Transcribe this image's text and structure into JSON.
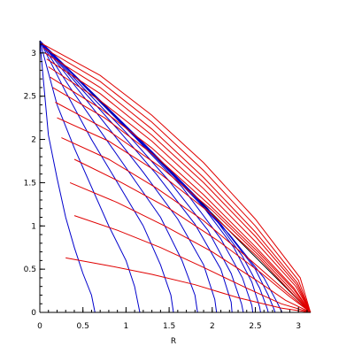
{
  "chart_data": {
    "type": "line",
    "title": "",
    "xlabel": "R",
    "ylabel": "",
    "xlim": [
      0,
      3.1416
    ],
    "ylim": [
      0,
      3.1416
    ],
    "grid": false,
    "legend": "none",
    "x_ticks": [
      {
        "value": 0,
        "label": "0"
      },
      {
        "value": 0.5,
        "label": "0.5"
      },
      {
        "value": 1,
        "label": "1"
      },
      {
        "value": 1.5,
        "label": "1.5"
      },
      {
        "value": 2,
        "label": "2"
      },
      {
        "value": 2.5,
        "label": "2.5"
      },
      {
        "value": 3,
        "label": "3"
      }
    ],
    "y_ticks": [
      {
        "value": 0,
        "label": "0"
      },
      {
        "value": 0.5,
        "label": "0.5"
      },
      {
        "value": 1,
        "label": "1"
      },
      {
        "value": 1.5,
        "label": "1.5"
      },
      {
        "value": 2,
        "label": "2"
      },
      {
        "value": 2.5,
        "label": "2.5"
      },
      {
        "value": 3,
        "label": "3"
      }
    ],
    "colors": {
      "blue": "#0000cc",
      "red": "#e00000",
      "black": "#000000"
    },
    "series": [
      {
        "color": "black",
        "points": [
          [
            0,
            3.1416
          ],
          [
            3.1416,
            0
          ]
        ]
      },
      {
        "color": "blue",
        "points": [
          [
            0,
            3.14
          ],
          [
            0.1,
            2.05
          ],
          [
            0.2,
            1.55
          ],
          [
            0.3,
            1.1
          ],
          [
            0.4,
            0.75
          ],
          [
            0.5,
            0.45
          ],
          [
            0.6,
            0.2
          ],
          [
            0.64,
            0
          ]
        ]
      },
      {
        "color": "blue",
        "points": [
          [
            0,
            3.14
          ],
          [
            0.2,
            2.4
          ],
          [
            0.4,
            1.9
          ],
          [
            0.6,
            1.45
          ],
          [
            0.8,
            1.0
          ],
          [
            1.0,
            0.6
          ],
          [
            1.1,
            0.3
          ],
          [
            1.16,
            0
          ]
        ]
      },
      {
        "color": "blue",
        "points": [
          [
            0,
            3.14
          ],
          [
            0.3,
            2.55
          ],
          [
            0.6,
            2.0
          ],
          [
            0.9,
            1.5
          ],
          [
            1.2,
            1.0
          ],
          [
            1.4,
            0.55
          ],
          [
            1.52,
            0.2
          ],
          [
            1.55,
            0
          ]
        ]
      },
      {
        "color": "blue",
        "points": [
          [
            0,
            3.14
          ],
          [
            0.35,
            2.6
          ],
          [
            0.7,
            2.1
          ],
          [
            1.05,
            1.6
          ],
          [
            1.4,
            1.1
          ],
          [
            1.65,
            0.6
          ],
          [
            1.8,
            0.2
          ],
          [
            1.83,
            0
          ]
        ]
      },
      {
        "color": "blue",
        "points": [
          [
            0,
            3.14
          ],
          [
            0.4,
            2.63
          ],
          [
            0.8,
            2.13
          ],
          [
            1.2,
            1.62
          ],
          [
            1.6,
            1.08
          ],
          [
            1.9,
            0.55
          ],
          [
            2.03,
            0.15
          ],
          [
            2.05,
            0
          ]
        ]
      },
      {
        "color": "blue",
        "points": [
          [
            0,
            3.14
          ],
          [
            0.45,
            2.62
          ],
          [
            0.9,
            2.12
          ],
          [
            1.35,
            1.6
          ],
          [
            1.8,
            1.02
          ],
          [
            2.1,
            0.5
          ],
          [
            2.22,
            0.12
          ],
          [
            2.23,
            0
          ]
        ]
      },
      {
        "color": "blue",
        "points": [
          [
            0,
            3.14
          ],
          [
            0.5,
            2.6
          ],
          [
            1.0,
            2.08
          ],
          [
            1.5,
            1.52
          ],
          [
            1.95,
            0.95
          ],
          [
            2.22,
            0.45
          ],
          [
            2.34,
            0.1
          ],
          [
            2.36,
            0
          ]
        ]
      },
      {
        "color": "blue",
        "points": [
          [
            0,
            3.14
          ],
          [
            0.55,
            2.58
          ],
          [
            1.1,
            2.03
          ],
          [
            1.65,
            1.45
          ],
          [
            2.1,
            0.85
          ],
          [
            2.35,
            0.4
          ],
          [
            2.46,
            0.08
          ],
          [
            2.47,
            0
          ]
        ]
      },
      {
        "color": "blue",
        "points": [
          [
            0,
            3.14
          ],
          [
            0.6,
            2.55
          ],
          [
            1.2,
            1.96
          ],
          [
            1.8,
            1.35
          ],
          [
            2.25,
            0.75
          ],
          [
            2.46,
            0.35
          ],
          [
            2.55,
            0.06
          ],
          [
            2.56,
            0
          ]
        ]
      },
      {
        "color": "blue",
        "points": [
          [
            0,
            3.14
          ],
          [
            0.65,
            2.5
          ],
          [
            1.3,
            1.86
          ],
          [
            1.95,
            1.2
          ],
          [
            2.35,
            0.65
          ],
          [
            2.55,
            0.28
          ],
          [
            2.64,
            0.04
          ],
          [
            2.65,
            0
          ]
        ]
      },
      {
        "color": "blue",
        "points": [
          [
            0,
            3.14
          ],
          [
            0.7,
            2.45
          ],
          [
            1.4,
            1.75
          ],
          [
            2.1,
            1.02
          ],
          [
            2.5,
            0.5
          ],
          [
            2.65,
            0.2
          ],
          [
            2.72,
            0.03
          ],
          [
            2.73,
            0
          ]
        ]
      },
      {
        "color": "blue",
        "points": [
          [
            0,
            3.14
          ],
          [
            0.75,
            2.4
          ],
          [
            1.5,
            1.63
          ],
          [
            2.2,
            0.9
          ],
          [
            2.6,
            0.4
          ],
          [
            2.74,
            0.14
          ],
          [
            2.8,
            0.02
          ],
          [
            2.81,
            0
          ]
        ]
      },
      {
        "color": "red",
        "points": [
          [
            0.3,
            0.63
          ],
          [
            0.8,
            0.54
          ],
          [
            1.3,
            0.44
          ],
          [
            1.8,
            0.32
          ],
          [
            2.3,
            0.17
          ],
          [
            2.8,
            0.05
          ],
          [
            3.14,
            0
          ]
        ]
      },
      {
        "color": "red",
        "points": [
          [
            0.4,
            1.12
          ],
          [
            0.9,
            0.95
          ],
          [
            1.4,
            0.75
          ],
          [
            1.9,
            0.52
          ],
          [
            2.4,
            0.28
          ],
          [
            2.8,
            0.1
          ],
          [
            3.14,
            0
          ]
        ]
      },
      {
        "color": "red",
        "points": [
          [
            0.35,
            1.5
          ],
          [
            0.9,
            1.27
          ],
          [
            1.45,
            1.0
          ],
          [
            2.0,
            0.7
          ],
          [
            2.5,
            0.38
          ],
          [
            2.85,
            0.14
          ],
          [
            3.14,
            0
          ]
        ]
      },
      {
        "color": "red",
        "points": [
          [
            0.4,
            1.77
          ],
          [
            0.95,
            1.5
          ],
          [
            1.5,
            1.2
          ],
          [
            2.05,
            0.84
          ],
          [
            2.55,
            0.47
          ],
          [
            2.9,
            0.18
          ],
          [
            3.14,
            0
          ]
        ]
      },
      {
        "color": "red",
        "points": [
          [
            0.25,
            2.02
          ],
          [
            0.8,
            1.77
          ],
          [
            1.35,
            1.44
          ],
          [
            1.9,
            1.06
          ],
          [
            2.45,
            0.6
          ],
          [
            2.85,
            0.25
          ],
          [
            3.14,
            0
          ]
        ]
      },
      {
        "color": "red",
        "points": [
          [
            0.2,
            2.25
          ],
          [
            0.8,
            1.98
          ],
          [
            1.4,
            1.6
          ],
          [
            2.0,
            1.13
          ],
          [
            2.55,
            0.62
          ],
          [
            2.9,
            0.25
          ],
          [
            3.14,
            0
          ]
        ]
      },
      {
        "color": "red",
        "points": [
          [
            0.18,
            2.43
          ],
          [
            0.8,
            2.1
          ],
          [
            1.4,
            1.68
          ],
          [
            2.0,
            1.18
          ],
          [
            2.55,
            0.65
          ],
          [
            2.92,
            0.26
          ],
          [
            3.14,
            0
          ]
        ]
      },
      {
        "color": "red",
        "points": [
          [
            0.15,
            2.6
          ],
          [
            0.75,
            2.25
          ],
          [
            1.35,
            1.8
          ],
          [
            1.95,
            1.26
          ],
          [
            2.55,
            0.68
          ],
          [
            2.94,
            0.27
          ],
          [
            3.14,
            0
          ]
        ]
      },
      {
        "color": "red",
        "points": [
          [
            0.12,
            2.72
          ],
          [
            0.7,
            2.36
          ],
          [
            1.3,
            1.9
          ],
          [
            1.9,
            1.36
          ],
          [
            2.5,
            0.76
          ],
          [
            2.95,
            0.28
          ],
          [
            3.14,
            0
          ]
        ]
      },
      {
        "color": "red",
        "points": [
          [
            0.1,
            2.84
          ],
          [
            0.7,
            2.45
          ],
          [
            1.3,
            1.98
          ],
          [
            1.9,
            1.43
          ],
          [
            2.5,
            0.82
          ],
          [
            2.97,
            0.3
          ],
          [
            3.14,
            0
          ]
        ]
      },
      {
        "color": "red",
        "points": [
          [
            0.08,
            2.93
          ],
          [
            0.7,
            2.53
          ],
          [
            1.3,
            2.05
          ],
          [
            1.9,
            1.5
          ],
          [
            2.5,
            0.88
          ],
          [
            2.98,
            0.32
          ],
          [
            3.14,
            0
          ]
        ]
      },
      {
        "color": "red",
        "points": [
          [
            0.06,
            3.0
          ],
          [
            0.7,
            2.6
          ],
          [
            1.3,
            2.12
          ],
          [
            1.9,
            1.56
          ],
          [
            2.5,
            0.93
          ],
          [
            2.99,
            0.34
          ],
          [
            3.14,
            0
          ]
        ]
      },
      {
        "color": "red",
        "points": [
          [
            0.04,
            3.06
          ],
          [
            0.7,
            2.67
          ],
          [
            1.3,
            2.2
          ],
          [
            1.9,
            1.64
          ],
          [
            2.5,
            1.0
          ],
          [
            3.0,
            0.37
          ],
          [
            3.14,
            0
          ]
        ]
      },
      {
        "color": "red",
        "points": [
          [
            0.02,
            3.11
          ],
          [
            0.7,
            2.74
          ],
          [
            1.3,
            2.28
          ],
          [
            1.9,
            1.73
          ],
          [
            2.5,
            1.08
          ],
          [
            3.02,
            0.4
          ],
          [
            3.14,
            0
          ]
        ]
      }
    ]
  }
}
